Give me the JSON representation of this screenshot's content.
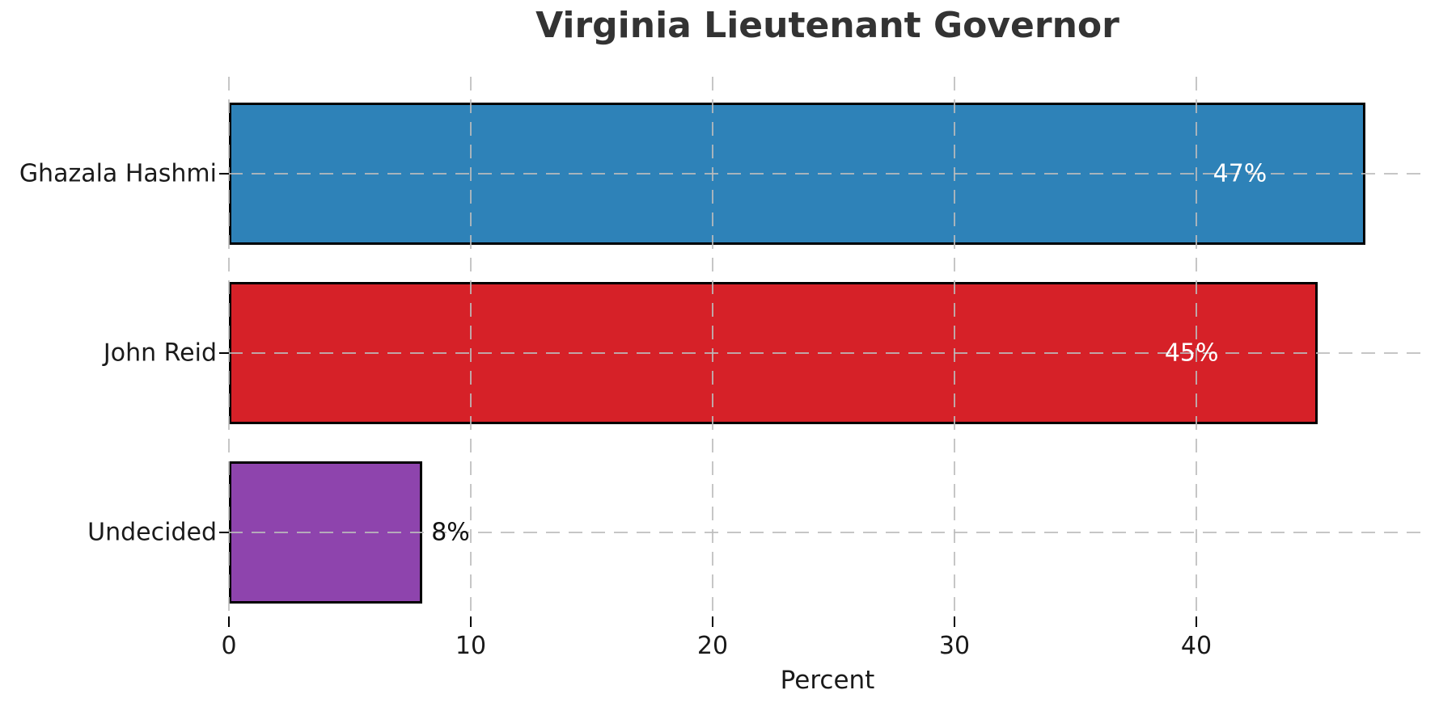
{
  "chart_data": {
    "type": "bar",
    "orientation": "horizontal",
    "title": "Virginia Lieutenant Governor",
    "xlabel": "Percent",
    "categories": [
      "Ghazala Hashmi",
      "John Reid",
      "Undecided"
    ],
    "values": [
      47,
      45,
      8
    ],
    "value_labels": [
      "47%",
      "45%",
      "8%"
    ],
    "value_label_placement": [
      "inside",
      "inside",
      "outside"
    ],
    "x_ticks": [
      0,
      10,
      20,
      30,
      40
    ],
    "x_tick_labels": [
      "0",
      "10",
      "20",
      "30",
      "40"
    ],
    "xlim": [
      0,
      49.5
    ],
    "grid": true,
    "grid_style": "dashed",
    "legend": "none",
    "colors": {
      "bar_fills": [
        "#2e82b8",
        "#d62128",
        "#8e44ad"
      ],
      "bar_edge": "#000000",
      "grid": "#bcbcbc",
      "title_text": "#333333",
      "axis_text": "#1a1a1a",
      "value_label_inside": "#ffffff",
      "value_label_outside": "#111111",
      "background": "#ffffff"
    }
  }
}
